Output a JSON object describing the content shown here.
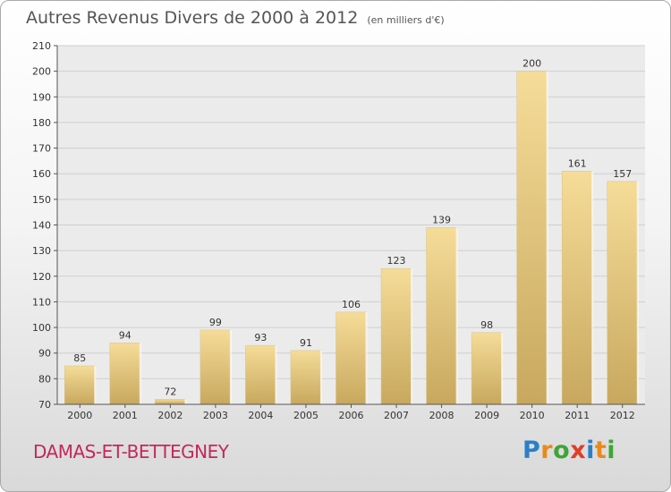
{
  "header": {
    "title": "Autres Revenus Divers de 2000 à 2012",
    "unit": "(en milliers d'€)"
  },
  "footer": {
    "commune": "DAMAS-ET-BETTEGNEY"
  },
  "logo": {
    "letters": [
      "P",
      "r",
      "o",
      "x",
      "i",
      "t",
      "i"
    ],
    "colors": [
      "#2a7fc9",
      "#e88a1a",
      "#3fa535",
      "#e23d28",
      "#2a7fc9",
      "#e88a1a",
      "#3fa535"
    ]
  },
  "colors": {
    "bar_top": "#f5dc98",
    "bar_bottom": "#c8a85e",
    "commune": "#c4285b"
  },
  "chart_data": {
    "type": "bar",
    "title": "Autres Revenus Divers de 2000 à 2012",
    "ylabel": "en milliers d'€",
    "categories": [
      "2000",
      "2001",
      "2002",
      "2003",
      "2004",
      "2005",
      "2006",
      "2007",
      "2008",
      "2009",
      "2010",
      "2011",
      "2012"
    ],
    "values": [
      85,
      94,
      72,
      99,
      93,
      91,
      106,
      123,
      139,
      98,
      200,
      161,
      157
    ],
    "ylim": [
      70,
      210
    ],
    "yticks": [
      70,
      80,
      90,
      100,
      110,
      120,
      130,
      140,
      150,
      160,
      170,
      180,
      190,
      200,
      210
    ],
    "grid": true
  }
}
